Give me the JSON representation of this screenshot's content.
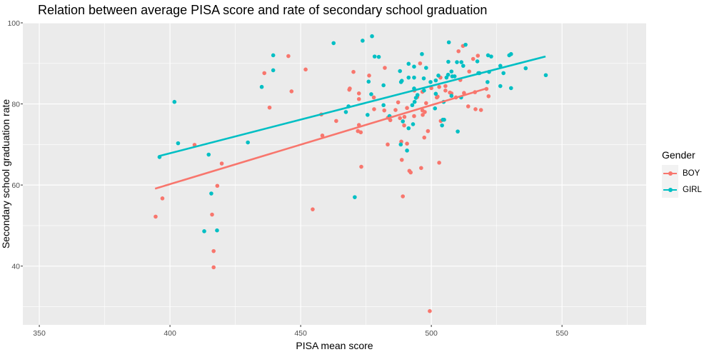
{
  "chart_data": {
    "type": "scatter",
    "title": "Relation between average PISA score and rate of secondary school graduation",
    "xlabel": "PISA mean score",
    "ylabel": "Secondary school graduation rate",
    "xlim": [
      343.7,
      582.2
    ],
    "ylim": [
      25.5,
      100
    ],
    "x_ticks": [
      350,
      400,
      450,
      500,
      550
    ],
    "y_ticks": [
      40,
      60,
      80,
      100
    ],
    "grid": true,
    "legend": {
      "title": "Gender",
      "position": "right"
    },
    "series": [
      {
        "name": "BOY",
        "color": "#F8766D",
        "fit_line": [
          [
            394.3,
            59.1
          ],
          [
            521.0,
            83.8
          ]
        ],
        "points": [
          [
            394.5,
            52.2
          ],
          [
            397.1,
            56.7
          ],
          [
            409.4,
            69.9
          ],
          [
            419.8,
            65.3
          ],
          [
            418.1,
            59.8
          ],
          [
            416.1,
            52.7
          ],
          [
            416.7,
            43.7
          ],
          [
            416.7,
            39.7
          ],
          [
            436.1,
            87.6
          ],
          [
            438.1,
            79.1
          ],
          [
            445.3,
            91.8
          ],
          [
            446.5,
            83.1
          ],
          [
            451.9,
            88.5
          ],
          [
            454.6,
            54.0
          ],
          [
            457.9,
            77.4
          ],
          [
            458.3,
            72.2
          ],
          [
            463.6,
            75.8
          ],
          [
            470.2,
            87.9
          ],
          [
            468.6,
            83.5
          ],
          [
            468.8,
            83.8
          ],
          [
            472.3,
            82.6
          ],
          [
            472.3,
            81.2
          ],
          [
            472.3,
            74.8
          ],
          [
            471.9,
            73.3
          ],
          [
            473.0,
            73.0
          ],
          [
            473.2,
            64.5
          ],
          [
            476.2,
            87.0
          ],
          [
            478.0,
            81.6
          ],
          [
            478.1,
            78.7
          ],
          [
            482.2,
            88.9
          ],
          [
            482.0,
            78.4
          ],
          [
            483.4,
            76.6
          ],
          [
            484.3,
            76.0
          ],
          [
            483.3,
            70.0
          ],
          [
            486.3,
            78.5
          ],
          [
            487.3,
            80.4
          ],
          [
            488.0,
            76.5
          ],
          [
            489.7,
            76.8
          ],
          [
            489.6,
            74.7
          ],
          [
            490.7,
            79.0
          ],
          [
            493.4,
            77.0
          ],
          [
            493.5,
            83.3
          ],
          [
            494.6,
            81.7
          ],
          [
            495.7,
            90.0
          ],
          [
            496.6,
            83.0
          ],
          [
            496.7,
            77.3
          ],
          [
            496.6,
            78.4
          ],
          [
            497.5,
            78.0
          ],
          [
            498.0,
            80.2
          ],
          [
            498.7,
            73.3
          ],
          [
            497.3,
            71.7
          ],
          [
            488.5,
            70.7
          ],
          [
            490.7,
            70.2
          ],
          [
            488.7,
            66.2
          ],
          [
            491.6,
            63.5
          ],
          [
            492.1,
            63.1
          ],
          [
            496.1,
            64.2
          ],
          [
            503.0,
            65.5
          ],
          [
            489.1,
            57.2
          ],
          [
            499.4,
            28.9
          ],
          [
            500.0,
            83.9
          ],
          [
            502.1,
            81.6
          ],
          [
            502.4,
            81.8
          ],
          [
            503.0,
            84.2
          ],
          [
            503.5,
            86.5
          ],
          [
            505.4,
            84.4
          ],
          [
            505.4,
            83.3
          ],
          [
            507.1,
            82.8
          ],
          [
            507.7,
            82.6
          ],
          [
            503.6,
            75.8
          ],
          [
            509.4,
            81.6
          ],
          [
            510.4,
            93.0
          ],
          [
            511.1,
            85.9
          ],
          [
            512.1,
            94.3
          ],
          [
            512.5,
            82.7
          ],
          [
            514.1,
            79.4
          ],
          [
            514.5,
            88.0
          ],
          [
            516.0,
            91.1
          ],
          [
            516.7,
            82.9
          ],
          [
            516.9,
            78.7
          ],
          [
            517.8,
            91.9
          ],
          [
            519.0,
            78.5
          ],
          [
            521.1,
            83.7
          ],
          [
            521.9,
            81.9
          ]
        ]
      },
      {
        "name": "GIRL",
        "color": "#00BFC4",
        "fit_line": [
          [
            395.6,
            67.1
          ],
          [
            543.7,
            91.7
          ]
        ],
        "points": [
          [
            396.0,
            66.9
          ],
          [
            401.7,
            80.5
          ],
          [
            403.1,
            70.3
          ],
          [
            414.8,
            67.5
          ],
          [
            415.8,
            57.9
          ],
          [
            413.1,
            48.6
          ],
          [
            418.0,
            48.8
          ],
          [
            429.8,
            70.5
          ],
          [
            435.1,
            84.2
          ],
          [
            439.5,
            92.0
          ],
          [
            439.5,
            88.3
          ],
          [
            462.6,
            95.0
          ],
          [
            473.7,
            95.6
          ],
          [
            467.3,
            78.0
          ],
          [
            468.3,
            79.4
          ],
          [
            475.6,
            77.3
          ],
          [
            476.0,
            85.5
          ],
          [
            470.7,
            57.0
          ],
          [
            477.3,
            96.7
          ],
          [
            478.3,
            91.7
          ],
          [
            479.9,
            91.6
          ],
          [
            477.0,
            82.4
          ],
          [
            481.7,
            84.6
          ],
          [
            481.7,
            79.7
          ],
          [
            484.0,
            77.0
          ],
          [
            489.1,
            75.7
          ],
          [
            491.3,
            74.0
          ],
          [
            493.0,
            75.0
          ],
          [
            492.7,
            79.7
          ],
          [
            493.6,
            80.5
          ],
          [
            494.1,
            81.5
          ],
          [
            494.7,
            82.2
          ],
          [
            493.4,
            83.8
          ],
          [
            497.2,
            83.3
          ],
          [
            488.0,
            88.1
          ],
          [
            491.3,
            89.9
          ],
          [
            493.4,
            89.2
          ],
          [
            491.3,
            86.5
          ],
          [
            493.4,
            86.5
          ],
          [
            488.4,
            85.4
          ],
          [
            488.7,
            85.7
          ],
          [
            496.4,
            92.3
          ],
          [
            498.0,
            88.9
          ],
          [
            497.1,
            86.3
          ],
          [
            499.7,
            85.4
          ],
          [
            501.7,
            85.8
          ],
          [
            502.7,
            87.0
          ],
          [
            501.7,
            82.5
          ],
          [
            501.4,
            78.9
          ],
          [
            504.7,
            80.5
          ],
          [
            504.1,
            74.7
          ],
          [
            504.4,
            76.1
          ],
          [
            504.9,
            76.1
          ],
          [
            510.1,
            73.2
          ],
          [
            488.3,
            70.0
          ],
          [
            490.7,
            68.5
          ],
          [
            505.8,
            86.5
          ],
          [
            506.4,
            87.2
          ],
          [
            506.5,
            90.4
          ],
          [
            506.7,
            95.2
          ],
          [
            507.7,
            88.0
          ],
          [
            508.0,
            86.8
          ],
          [
            508.9,
            86.8
          ],
          [
            507.7,
            82.0
          ],
          [
            509.8,
            90.3
          ],
          [
            511.4,
            81.6
          ],
          [
            511.5,
            90.3
          ],
          [
            512.2,
            89.4
          ],
          [
            513.1,
            94.6
          ],
          [
            517.6,
            90.5
          ],
          [
            518.0,
            87.6
          ],
          [
            518.4,
            87.6
          ],
          [
            521.5,
            85.4
          ],
          [
            521.7,
            92.0
          ],
          [
            522.9,
            91.7
          ],
          [
            522.1,
            87.9
          ],
          [
            526.4,
            89.4
          ],
          [
            526.4,
            84.4
          ],
          [
            527.6,
            87.6
          ],
          [
            529.8,
            92.0
          ],
          [
            530.5,
            92.3
          ],
          [
            530.5,
            83.9
          ],
          [
            536.1,
            88.8
          ],
          [
            543.8,
            87.1
          ]
        ]
      }
    ]
  }
}
